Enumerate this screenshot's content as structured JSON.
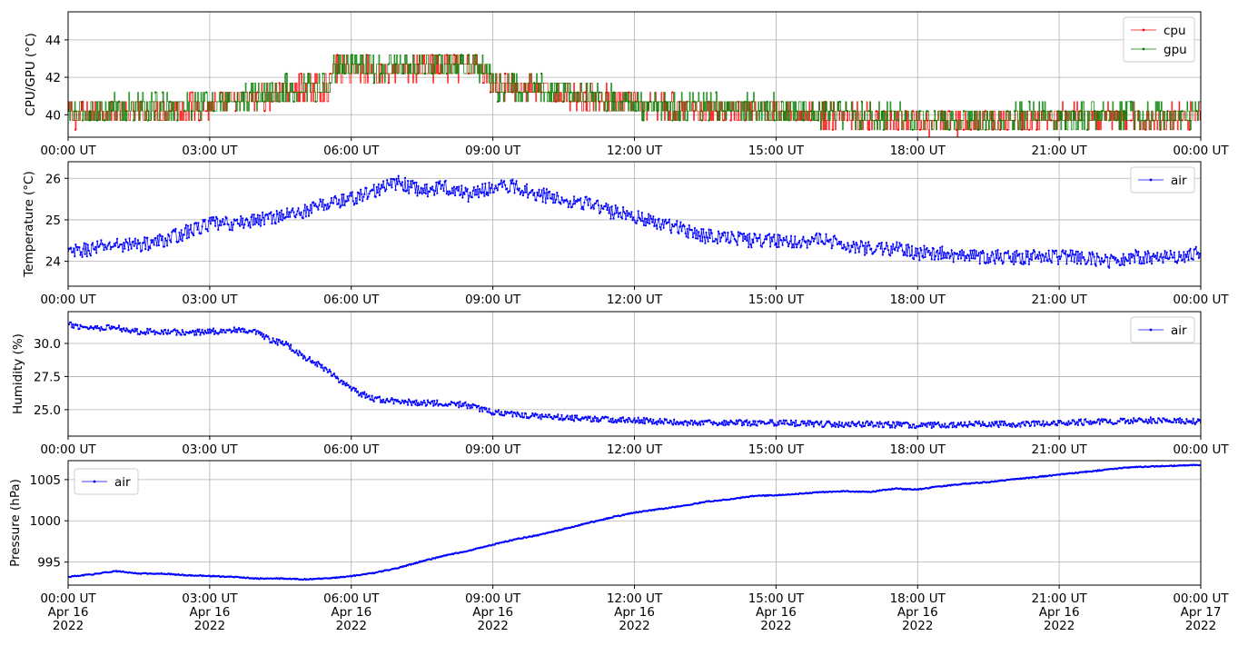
{
  "chart_data": [
    {
      "type": "line",
      "ylabel": "CPU/GPU (°C)",
      "ylim": [
        38.8,
        45.5
      ],
      "yticks": [
        40,
        42,
        44
      ],
      "xlim": [
        0,
        24
      ],
      "xticks": [
        0,
        3,
        6,
        9,
        12,
        15,
        18,
        21,
        24
      ],
      "xtick_labels": [
        "00:00 UT",
        "03:00 UT",
        "06:00 UT",
        "09:00 UT",
        "12:00 UT",
        "15:00 UT",
        "18:00 UT",
        "21:00 UT",
        "00:00 UT"
      ],
      "grid": true,
      "legend": "upper right",
      "series": [
        {
          "name": "cpu",
          "color": "#ff0000",
          "x": [
            0,
            1,
            2,
            2.5,
            3,
            3.5,
            4,
            4.5,
            5,
            5.5,
            5.6,
            6,
            6.5,
            7,
            7.5,
            8,
            8.5,
            8.9,
            9,
            9.5,
            10,
            10.5,
            11,
            11.5,
            12,
            13,
            14,
            15,
            16,
            17,
            18,
            19,
            20,
            21,
            22,
            23,
            24
          ],
          "y": [
            40.3,
            40.5,
            40.6,
            40.7,
            40.7,
            40.9,
            41.2,
            41.5,
            41.7,
            41.7,
            42.7,
            42.8,
            42.6,
            42.6,
            42.8,
            42.8,
            42.9,
            42.7,
            41.9,
            41.8,
            41.6,
            41.4,
            41.3,
            41.1,
            40.8,
            40.6,
            40.6,
            40.5,
            40.3,
            40.1,
            39.9,
            39.9,
            40.0,
            40.1,
            40.1,
            40.1,
            40.2
          ]
        },
        {
          "name": "gpu",
          "color": "#008000",
          "x": [
            0,
            1,
            2,
            2.5,
            3,
            3.5,
            4,
            4.5,
            5,
            5.5,
            5.6,
            6,
            6.5,
            7,
            7.5,
            8,
            8.5,
            8.9,
            9,
            9.5,
            10,
            10.5,
            11,
            11.5,
            12,
            13,
            14,
            15,
            16,
            17,
            18,
            19,
            20,
            21,
            22,
            23,
            24
          ],
          "y": [
            40.4,
            40.6,
            40.7,
            40.8,
            40.8,
            41.0,
            41.3,
            41.6,
            41.8,
            41.8,
            42.8,
            43.0,
            42.8,
            42.8,
            43.0,
            43.0,
            43.0,
            42.8,
            41.9,
            41.8,
            41.7,
            41.5,
            41.4,
            41.2,
            40.8,
            40.7,
            40.7,
            40.6,
            40.4,
            40.2,
            40.0,
            40.0,
            40.1,
            40.2,
            40.2,
            40.2,
            40.3
          ]
        }
      ]
    },
    {
      "type": "line",
      "ylabel": "Temperature (°C)",
      "ylim": [
        23.4,
        26.4
      ],
      "yticks": [
        24,
        25,
        26
      ],
      "xlim": [
        0,
        24
      ],
      "xticks": [
        0,
        3,
        6,
        9,
        12,
        15,
        18,
        21,
        24
      ],
      "xtick_labels": [
        "00:00 UT",
        "03:00 UT",
        "06:00 UT",
        "09:00 UT",
        "12:00 UT",
        "15:00 UT",
        "18:00 UT",
        "21:00 UT",
        "00:00 UT"
      ],
      "grid": true,
      "legend": "upper right",
      "series": [
        {
          "name": "air",
          "color": "#0000ff",
          "x": [
            0,
            0.5,
            1,
            1.5,
            2,
            2.5,
            3,
            3.5,
            4,
            4.5,
            5,
            5.5,
            6,
            6.5,
            7,
            7.5,
            8,
            8.5,
            9,
            9.5,
            10,
            10.5,
            11,
            11.5,
            12,
            12.5,
            13,
            13.5,
            14,
            14.5,
            15,
            15.5,
            16,
            16.5,
            17,
            17.5,
            18,
            18.5,
            19,
            19.5,
            20,
            20.5,
            21,
            21.5,
            22,
            22.5,
            23,
            23.5,
            24
          ],
          "y": [
            24.2,
            24.3,
            24.4,
            24.4,
            24.5,
            24.7,
            24.9,
            24.9,
            25.0,
            25.1,
            25.2,
            25.4,
            25.5,
            25.7,
            25.9,
            25.7,
            25.8,
            25.6,
            25.8,
            25.8,
            25.6,
            25.5,
            25.4,
            25.2,
            25.1,
            24.9,
            24.8,
            24.6,
            24.6,
            24.5,
            24.5,
            24.5,
            24.5,
            24.4,
            24.3,
            24.3,
            24.2,
            24.2,
            24.1,
            24.1,
            24.1,
            24.1,
            24.1,
            24.1,
            24.0,
            24.1,
            24.1,
            24.1,
            24.2
          ]
        }
      ]
    },
    {
      "type": "line",
      "ylabel": "Humidity (%)",
      "ylim": [
        23.0,
        32.4
      ],
      "yticks": [
        25.0,
        27.5,
        30.0
      ],
      "ytick_labels": [
        "25.0",
        "27.5",
        "30.0"
      ],
      "xlim": [
        0,
        24
      ],
      "xticks": [
        0,
        3,
        6,
        9,
        12,
        15,
        18,
        21,
        24
      ],
      "xtick_labels": [
        "00:00 UT",
        "03:00 UT",
        "06:00 UT",
        "09:00 UT",
        "12:00 UT",
        "15:00 UT",
        "18:00 UT",
        "21:00 UT",
        "00:00 UT"
      ],
      "grid": true,
      "legend": "upper right",
      "series": [
        {
          "name": "air",
          "color": "#0000ff",
          "x": [
            0,
            0.5,
            1,
            1.5,
            2,
            2.5,
            3,
            3.5,
            4,
            4.3,
            4.6,
            5,
            5.5,
            6,
            6.5,
            7,
            7.5,
            8,
            8.5,
            9,
            10,
            11,
            12,
            13,
            14,
            15,
            16,
            17,
            18,
            19,
            20,
            21,
            22,
            23,
            24
          ],
          "y": [
            31.4,
            31.2,
            31.2,
            30.9,
            30.9,
            30.8,
            30.9,
            31.0,
            30.8,
            30.2,
            30.0,
            29.0,
            28.0,
            26.5,
            25.8,
            25.6,
            25.5,
            25.5,
            25.3,
            24.8,
            24.5,
            24.3,
            24.2,
            24.0,
            24.0,
            24.0,
            23.9,
            23.9,
            23.8,
            23.9,
            23.9,
            24.0,
            24.1,
            24.2,
            24.1
          ]
        }
      ]
    },
    {
      "type": "line",
      "ylabel": "Pressure (hPa)",
      "ylim": [
        992.2,
        1007.3
      ],
      "yticks": [
        995,
        1000,
        1005
      ],
      "xlim": [
        0,
        24
      ],
      "xticks": [
        0,
        3,
        6,
        9,
        12,
        15,
        18,
        21,
        24
      ],
      "xtick_labels": [
        "00:00 UT\nApr 16\n2022",
        "03:00 UT\nApr 16\n2022",
        "06:00 UT\nApr 16\n2022",
        "09:00 UT\nApr 16\n2022",
        "12:00 UT\nApr 16\n2022",
        "15:00 UT\nApr 16\n2022",
        "18:00 UT\nApr 16\n2022",
        "21:00 UT\nApr 16\n2022",
        "00:00 UT\nApr 17\n2022"
      ],
      "grid": true,
      "legend": "upper left",
      "series": [
        {
          "name": "air",
          "color": "#0000ff",
          "x": [
            0,
            0.5,
            1,
            1.5,
            2,
            2.5,
            3,
            3.5,
            4,
            4.5,
            5,
            5.5,
            6,
            6.5,
            7,
            7.5,
            8,
            8.5,
            9,
            9.5,
            10,
            10.5,
            11,
            11.5,
            12,
            12.5,
            13,
            13.5,
            14,
            14.5,
            15,
            15.5,
            16,
            16.5,
            17,
            17.5,
            18,
            18.5,
            19,
            19.5,
            20,
            20.5,
            21,
            21.5,
            22,
            22.5,
            23,
            23.5,
            24
          ],
          "y": [
            993.2,
            993.5,
            993.9,
            993.6,
            993.6,
            993.4,
            993.3,
            993.2,
            993.0,
            993.0,
            992.9,
            993.0,
            993.3,
            993.7,
            994.3,
            995.1,
            995.8,
            996.4,
            997.1,
            997.8,
            998.3,
            999.0,
            999.7,
            1000.4,
            1001.0,
            1001.4,
            1001.8,
            1002.3,
            1002.6,
            1003.0,
            1003.1,
            1003.3,
            1003.5,
            1003.6,
            1003.5,
            1003.9,
            1003.8,
            1004.2,
            1004.5,
            1004.7,
            1005.0,
            1005.3,
            1005.6,
            1005.9,
            1006.2,
            1006.5,
            1006.6,
            1006.7,
            1006.8
          ]
        }
      ]
    }
  ]
}
